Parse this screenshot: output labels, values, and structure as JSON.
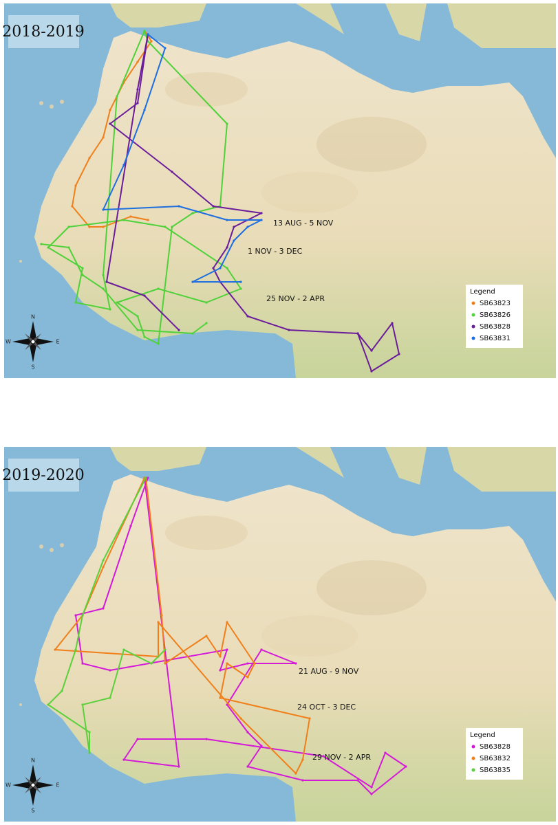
{
  "maps": [
    {
      "title": "2018-2019",
      "annotations": [
        "13 AUG - 5 NOV",
        "1 NOV - 3 DEC",
        "25 NOV - 2 APR"
      ],
      "legend": {
        "title": "Legend",
        "items": [
          {
            "name": "SB63823",
            "color": "#f07f1a"
          },
          {
            "name": "SB63826",
            "color": "#4fd13a"
          },
          {
            "name": "SB63828",
            "color": "#6a1c9a"
          },
          {
            "name": "SB63831",
            "color": "#1d6ee0"
          }
        ]
      }
    },
    {
      "title": "2019-2020",
      "annotations": [
        "21 AUG - 9 NOV",
        "24 OCT - 3 DEC",
        "29 NOV - 2 APR"
      ],
      "legend": {
        "title": "Legend",
        "items": [
          {
            "name": "SB63828",
            "color": "#d41ad8"
          },
          {
            "name": "SB63832",
            "color": "#f07f1a"
          },
          {
            "name": "SB63835",
            "color": "#5bd03c"
          }
        ]
      }
    }
  ],
  "compass": {
    "n": "N",
    "s": "S",
    "e": "E",
    "w": "W"
  }
}
